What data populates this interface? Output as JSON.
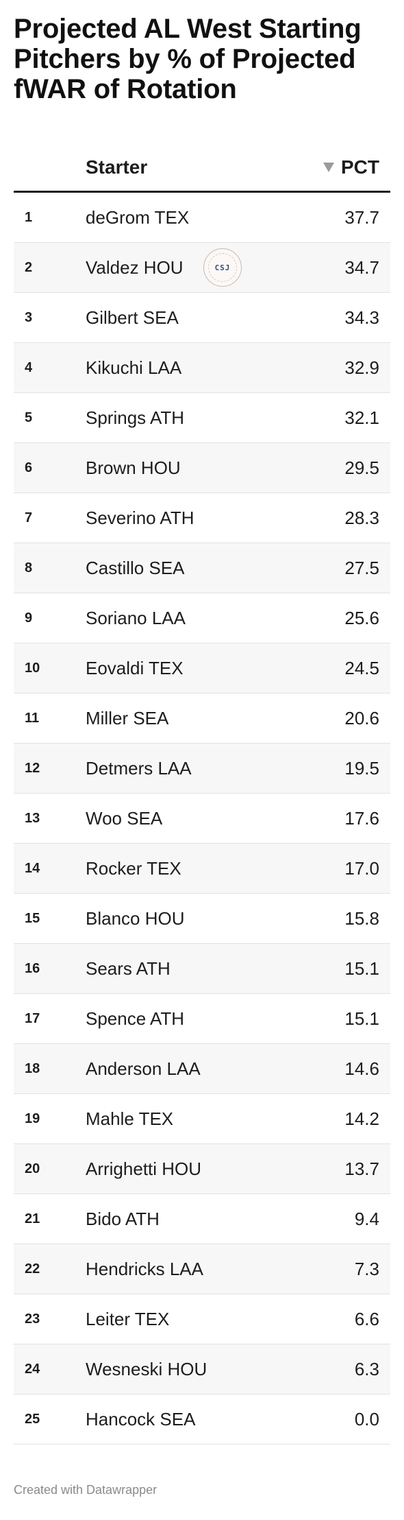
{
  "title": "Projected AL West Starting Pitchers by % of Projected fWAR of Rotation",
  "columns": {
    "starter": "Starter",
    "pct": "PCT"
  },
  "watermark_text": "CSJ",
  "footer": "Created with Datawrapper",
  "colors": {
    "text": "#1d1d1d",
    "alt_row": "#f7f7f7",
    "rule": "#1d1d1d",
    "sort_icon": "#9a9a9a"
  },
  "chart_data": {
    "type": "table",
    "title": "Projected AL West Starting Pitchers by % of Projected fWAR of Rotation",
    "sort": {
      "column": "PCT",
      "direction": "descending"
    },
    "rows": [
      {
        "rank": "1",
        "starter": "deGrom TEX",
        "pct": "37.7"
      },
      {
        "rank": "2",
        "starter": "Valdez HOU",
        "pct": "34.7"
      },
      {
        "rank": "3",
        "starter": "Gilbert SEA",
        "pct": "34.3"
      },
      {
        "rank": "4",
        "starter": "Kikuchi LAA",
        "pct": "32.9"
      },
      {
        "rank": "5",
        "starter": "Springs ATH",
        "pct": "32.1"
      },
      {
        "rank": "6",
        "starter": "Brown HOU",
        "pct": "29.5"
      },
      {
        "rank": "7",
        "starter": "Severino ATH",
        "pct": "28.3"
      },
      {
        "rank": "8",
        "starter": "Castillo SEA",
        "pct": "27.5"
      },
      {
        "rank": "9",
        "starter": "Soriano LAA",
        "pct": "25.6"
      },
      {
        "rank": "10",
        "starter": "Eovaldi TEX",
        "pct": "24.5"
      },
      {
        "rank": "11",
        "starter": "Miller SEA",
        "pct": "20.6"
      },
      {
        "rank": "12",
        "starter": "Detmers LAA",
        "pct": "19.5"
      },
      {
        "rank": "13",
        "starter": "Woo SEA",
        "pct": "17.6"
      },
      {
        "rank": "14",
        "starter": "Rocker TEX",
        "pct": "17.0"
      },
      {
        "rank": "15",
        "starter": "Blanco HOU",
        "pct": "15.8"
      },
      {
        "rank": "16",
        "starter": "Sears ATH",
        "pct": "15.1"
      },
      {
        "rank": "17",
        "starter": "Spence ATH",
        "pct": "15.1"
      },
      {
        "rank": "18",
        "starter": "Anderson LAA",
        "pct": "14.6"
      },
      {
        "rank": "19",
        "starter": "Mahle TEX",
        "pct": "14.2"
      },
      {
        "rank": "20",
        "starter": "Arrighetti HOU",
        "pct": "13.7"
      },
      {
        "rank": "21",
        "starter": "Bido ATH",
        "pct": "9.4"
      },
      {
        "rank": "22",
        "starter": "Hendricks LAA",
        "pct": "7.3"
      },
      {
        "rank": "23",
        "starter": "Leiter TEX",
        "pct": "6.6"
      },
      {
        "rank": "24",
        "starter": "Wesneski HOU",
        "pct": "6.3"
      },
      {
        "rank": "25",
        "starter": "Hancock SEA",
        "pct": "0.0"
      }
    ]
  }
}
